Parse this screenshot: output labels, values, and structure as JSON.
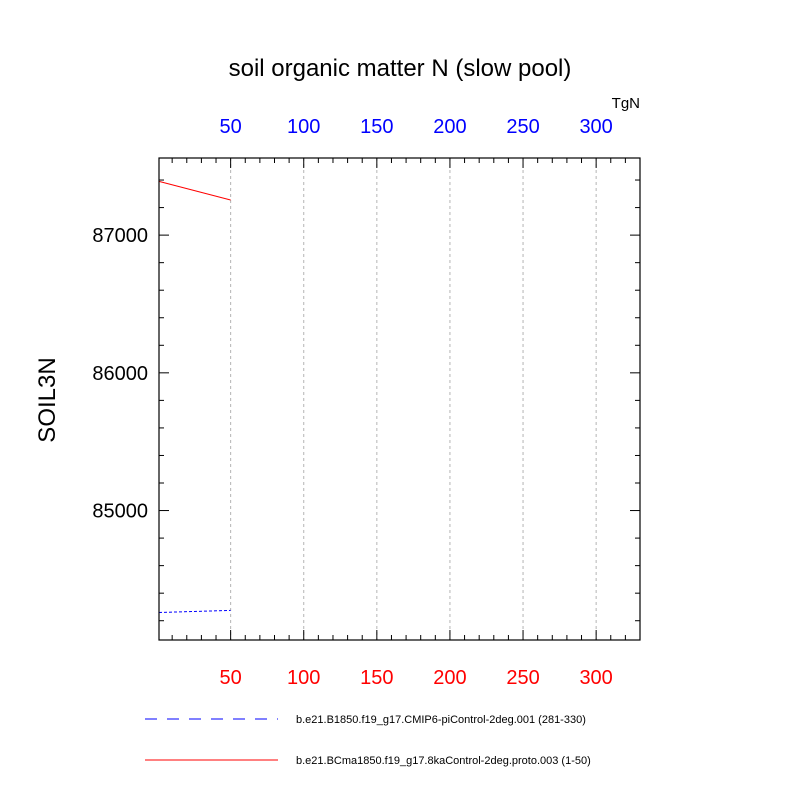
{
  "chart_data": {
    "type": "line",
    "title": "soil organic matter N (slow pool)",
    "ylabel": "SOIL3N",
    "units": "TgN",
    "xlim": [
      1,
      330
    ],
    "ylim": [
      84060,
      87560
    ],
    "x_ticks": [
      50,
      100,
      150,
      200,
      250,
      300
    ],
    "y_ticks": [
      85000,
      86000,
      87000
    ],
    "grid": "vertical dashed",
    "legend_position": "bottom",
    "colors": {
      "bottom_axis": "#ff0000",
      "top_axis": "#0000ff",
      "series_1": "#0000ff",
      "series_2": "#ff0000"
    },
    "series": [
      {
        "name": "b.e21.B1850.f19_g17.CMIP6-piControl-2deg.001 (281-330)",
        "style": "dashed",
        "color": "#0000ff",
        "x": [
          1,
          50
        ],
        "y": [
          84260,
          84275
        ]
      },
      {
        "name": "b.e21.BCma1850.f19_g17.8kaControl-2deg.proto.003 (1-50)",
        "style": "solid",
        "color": "#ff0000",
        "x": [
          1,
          50
        ],
        "y": [
          87390,
          87255
        ]
      }
    ]
  }
}
